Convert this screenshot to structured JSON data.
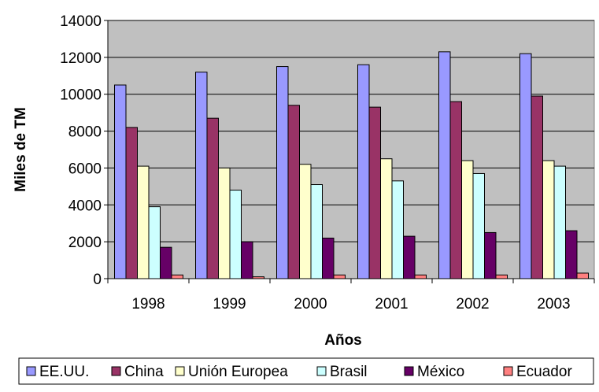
{
  "chart_data": {
    "type": "bar",
    "title": "",
    "xlabel": "Años",
    "ylabel": "Miles de TM",
    "ylim": [
      0,
      14000
    ],
    "yticks": [
      0,
      2000,
      4000,
      6000,
      8000,
      10000,
      12000,
      14000
    ],
    "grid": true,
    "legend_position": "bottom",
    "categories": [
      "1998",
      "1999",
      "2000",
      "2001",
      "2002",
      "2003"
    ],
    "series": [
      {
        "name": "EE.UU.",
        "color": "#9999FF",
        "values": [
          10500,
          11200,
          11500,
          11600,
          12300,
          12200
        ]
      },
      {
        "name": "China",
        "color": "#993366",
        "values": [
          8200,
          8700,
          9400,
          9300,
          9600,
          9900
        ]
      },
      {
        "name": "Unión Europea",
        "color": "#FFFFCC",
        "values": [
          6100,
          6000,
          6200,
          6500,
          6400,
          6400
        ]
      },
      {
        "name": "Brasil",
        "color": "#CCFFFF",
        "values": [
          3900,
          4800,
          5100,
          5300,
          5700,
          6100
        ]
      },
      {
        "name": "México",
        "color": "#660066",
        "values": [
          1700,
          2000,
          2200,
          2300,
          2500,
          2600
        ]
      },
      {
        "name": "Ecuador",
        "color": "#FF8080",
        "values": [
          200,
          100,
          200,
          200,
          200,
          300
        ]
      }
    ],
    "plot_background": "#C0C0C0"
  }
}
